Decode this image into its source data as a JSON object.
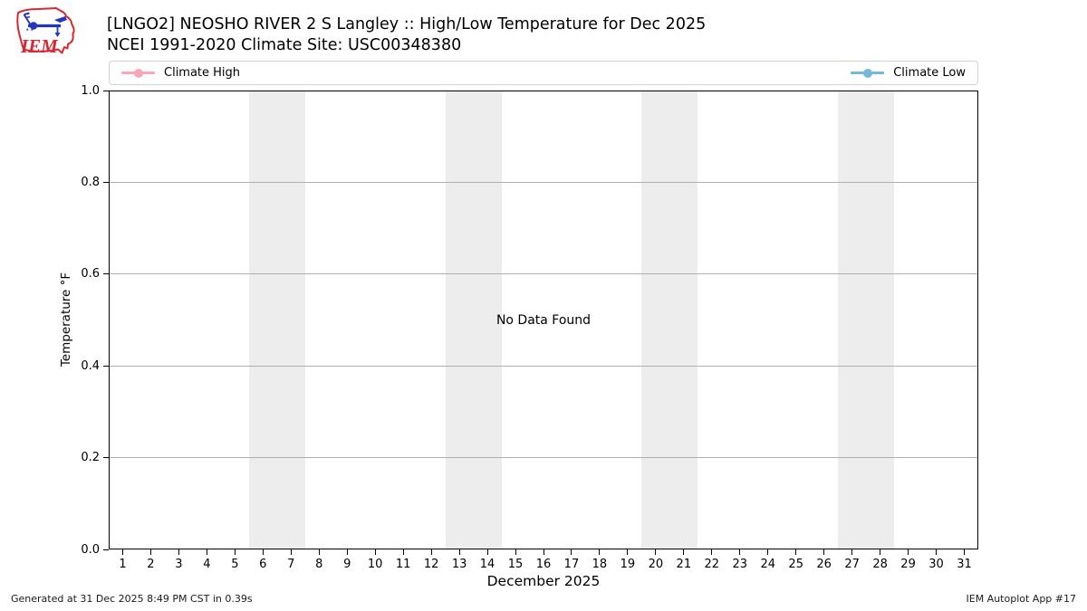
{
  "header": {
    "title": "[LNGO2] NEOSHO RIVER 2 S Langley :: High/Low Temperature for Dec 2025",
    "subtitle": "NCEI 1991-2020 Climate Site: USC00348380"
  },
  "logo": {
    "text": "IEM"
  },
  "legend": {
    "items": [
      {
        "label": "Climate High",
        "color": "#f7a8b8"
      },
      {
        "label": "Climate Low",
        "color": "#74b9da"
      }
    ]
  },
  "chart_data": {
    "type": "line",
    "title": "[LNGO2] NEOSHO RIVER 2 S Langley :: High/Low Temperature for Dec 2025",
    "subtitle": "NCEI 1991-2020 Climate Site: USC00348380",
    "xlabel": "December 2025",
    "ylabel": "Temperature °F",
    "xlim": [
      0.5,
      31.5
    ],
    "ylim": [
      0.0,
      1.0
    ],
    "x_ticks": [
      1,
      2,
      3,
      4,
      5,
      6,
      7,
      8,
      9,
      10,
      11,
      12,
      13,
      14,
      15,
      16,
      17,
      18,
      19,
      20,
      21,
      22,
      23,
      24,
      25,
      26,
      27,
      28,
      29,
      30,
      31
    ],
    "y_ticks": [
      {
        "value": 0.0,
        "label": "0.0"
      },
      {
        "value": 0.2,
        "label": "0.2"
      },
      {
        "value": 0.4,
        "label": "0.4"
      },
      {
        "value": 0.6,
        "label": "0.6"
      },
      {
        "value": 0.8,
        "label": "0.8"
      },
      {
        "value": 1.0,
        "label": "1.0"
      }
    ],
    "grid": "horizontal",
    "legend_position": "top-expanded",
    "series": [
      {
        "name": "Climate High",
        "color": "#f7a8b8",
        "marker": "circle",
        "x": [],
        "values": []
      },
      {
        "name": "Climate Low",
        "color": "#74b9da",
        "marker": "circle",
        "x": [],
        "values": []
      }
    ],
    "annotations": [
      {
        "text": "No Data Found",
        "x": 16,
        "y": 0.5
      }
    ],
    "weekend_shading": {
      "color": "#ededed",
      "bands": [
        [
          5.5,
          7.5
        ],
        [
          12.5,
          14.5
        ],
        [
          19.5,
          21.5
        ],
        [
          26.5,
          28.5
        ]
      ]
    }
  },
  "no_data_text": "No Data Found",
  "footer": {
    "generated": "Generated at 31 Dec 2025 8:49 PM CST in 0.39s",
    "app": "IEM Autoplot App #17"
  }
}
